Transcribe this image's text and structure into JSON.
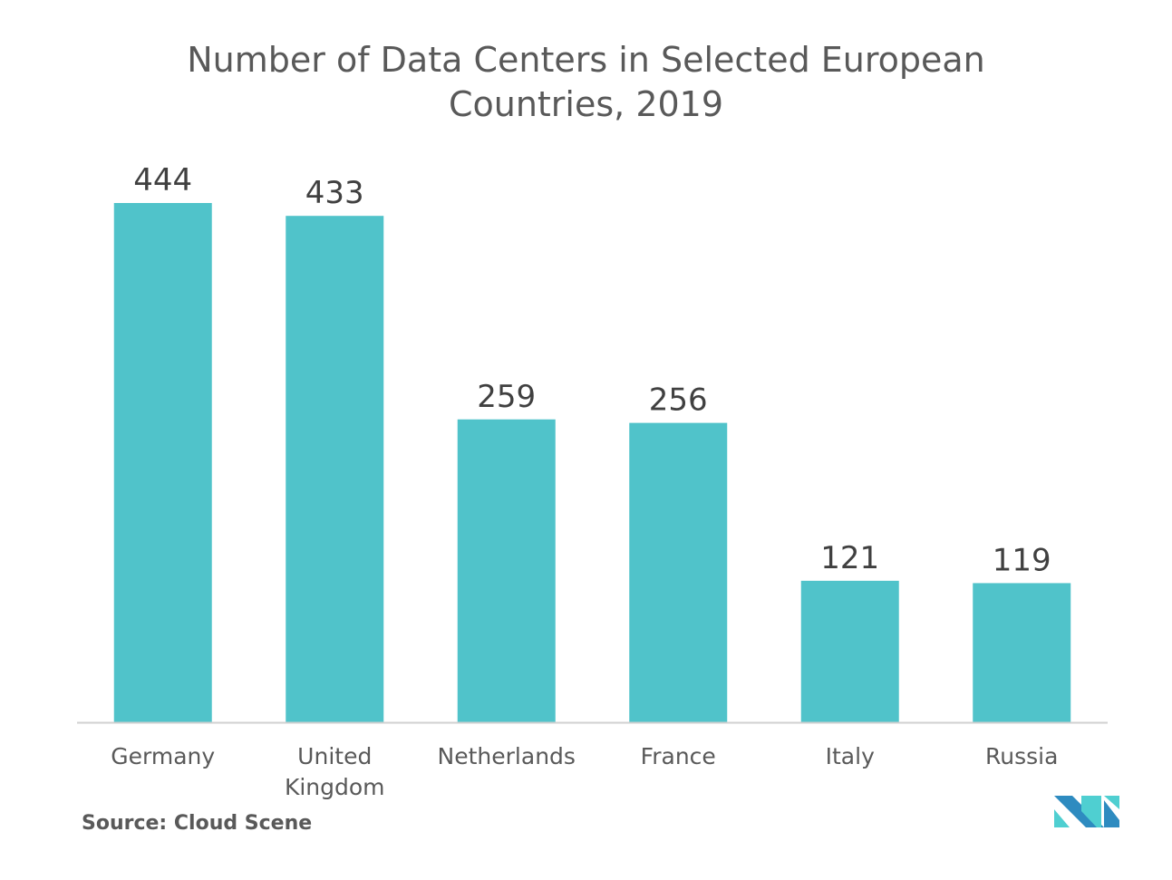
{
  "chart_data": {
    "type": "bar",
    "title": "Number of Data Centers in Selected European Countries, 2019",
    "title_lines": [
      "Number of Data Centers in Selected European",
      "Countries, 2019"
    ],
    "categories": [
      "Germany",
      "United Kingdom",
      "Netherlands",
      "France",
      "Italy",
      "Russia"
    ],
    "category_lines": [
      [
        "Germany"
      ],
      [
        "United",
        "Kingdom"
      ],
      [
        "Netherlands"
      ],
      [
        "France"
      ],
      [
        "Italy"
      ],
      [
        "Russia"
      ]
    ],
    "values": [
      444,
      433,
      259,
      256,
      121,
      119
    ],
    "data_labels": [
      "444",
      "433",
      "259",
      "256",
      "121",
      "119"
    ],
    "xlabel": "",
    "ylabel": "",
    "ylim": [
      0,
      444
    ],
    "grid": false,
    "bar_color": "#50C3CA"
  },
  "source": "Source: Cloud Scene",
  "logo": {
    "colors": [
      "#2E8BC0",
      "#4FCFD1"
    ]
  }
}
